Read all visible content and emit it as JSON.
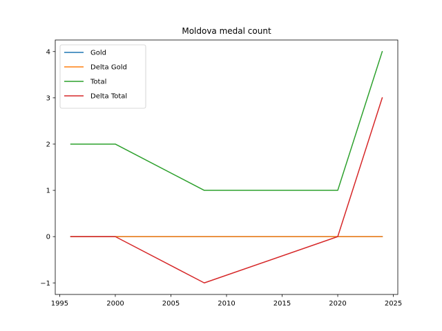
{
  "chart_data": {
    "type": "line",
    "title": "Moldova medal count",
    "xlabel": "",
    "ylabel": "",
    "x": [
      1996,
      2000,
      2008,
      2020,
      2024
    ],
    "series": [
      {
        "name": "Gold",
        "values": [
          0,
          0,
          0,
          0,
          0
        ],
        "color": "#1f77b4"
      },
      {
        "name": "Delta Gold",
        "values": [
          0,
          0,
          0,
          0,
          0
        ],
        "color": "#ff7f0e"
      },
      {
        "name": "Total",
        "values": [
          2,
          2,
          1,
          1,
          4
        ],
        "color": "#2ca02c"
      },
      {
        "name": "Delta Total",
        "values": [
          0,
          0,
          -1,
          0,
          3
        ],
        "color": "#d62728"
      }
    ],
    "xlim": [
      1994.6,
      2025.4
    ],
    "ylim": [
      -1.25,
      4.25
    ],
    "x_ticks": [
      1995,
      2000,
      2005,
      2010,
      2015,
      2020,
      2025
    ],
    "x_tick_labels": [
      "1995",
      "2000",
      "2005",
      "2010",
      "2015",
      "2020",
      "2025"
    ],
    "y_ticks": [
      -1,
      0,
      1,
      2,
      3,
      4
    ],
    "y_tick_labels": [
      "−1",
      "0",
      "1",
      "2",
      "3",
      "4"
    ],
    "grid": false,
    "legend_position": "upper-left"
  }
}
